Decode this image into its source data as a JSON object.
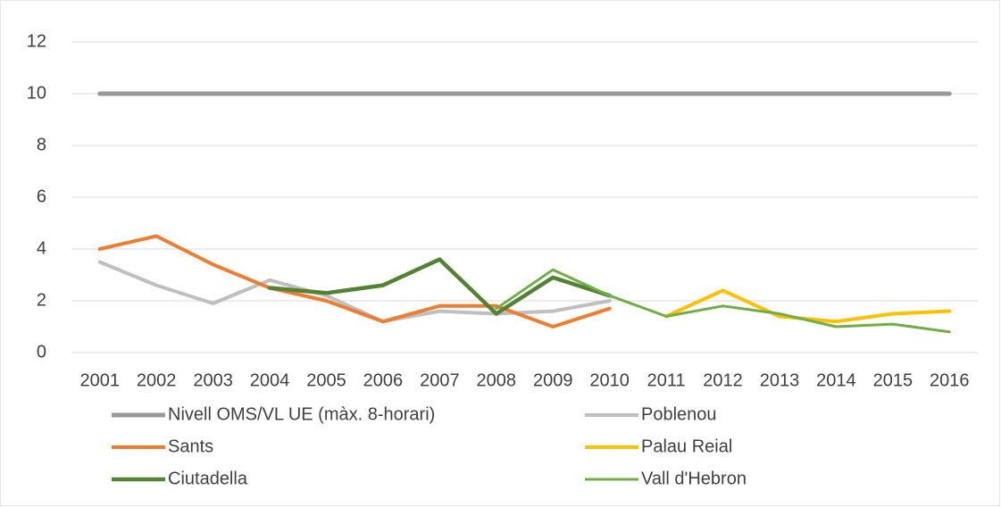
{
  "chart_data": {
    "type": "line",
    "categories": [
      "2001",
      "2002",
      "2003",
      "2004",
      "2005",
      "2006",
      "2007",
      "2008",
      "2009",
      "2010",
      "2011",
      "2012",
      "2013",
      "2014",
      "2015",
      "2016"
    ],
    "series": [
      {
        "name": "Nivell OMS/VL UE (màx. 8-horari)",
        "color": "#999999",
        "values": [
          10,
          10,
          10,
          10,
          10,
          10,
          10,
          10,
          10,
          10,
          10,
          10,
          10,
          10,
          10,
          10
        ]
      },
      {
        "name": "Poblenou",
        "color": "#bfbfbf",
        "values": [
          3.5,
          2.6,
          1.9,
          2.8,
          2.2,
          1.2,
          1.6,
          1.5,
          1.6,
          2.0,
          null,
          null,
          null,
          null,
          null,
          null
        ]
      },
      {
        "name": "Sants",
        "color": "#ed7d31",
        "values": [
          4.0,
          4.5,
          3.4,
          2.5,
          2.0,
          1.2,
          1.8,
          1.8,
          1.0,
          1.7,
          null,
          null,
          null,
          null,
          null,
          null
        ]
      },
      {
        "name": "Palau Reial",
        "color": "#ffc000",
        "values": [
          null,
          null,
          null,
          null,
          null,
          null,
          null,
          null,
          null,
          null,
          1.4,
          2.4,
          1.4,
          1.2,
          1.5,
          1.6
        ]
      },
      {
        "name": "Ciutadella",
        "color": "#548235",
        "values": [
          null,
          null,
          null,
          2.5,
          2.3,
          2.6,
          3.6,
          1.5,
          2.9,
          2.2,
          null,
          null,
          null,
          null,
          null,
          null
        ]
      },
      {
        "name": "Vall d'Hebron",
        "color": "#70ad47",
        "values": [
          null,
          null,
          null,
          null,
          null,
          null,
          null,
          1.7,
          3.2,
          2.2,
          1.4,
          1.8,
          1.5,
          1.0,
          1.1,
          0.8
        ]
      }
    ],
    "ylim": [
      0,
      12
    ],
    "yticks": [
      0,
      2,
      4,
      6,
      8,
      10,
      12
    ],
    "grid": true
  }
}
